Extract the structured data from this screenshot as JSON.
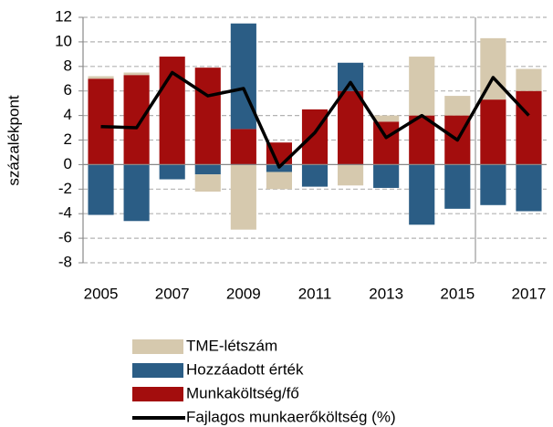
{
  "chart_data": {
    "type": "bar",
    "categories": [
      "2005",
      null,
      "2007",
      null,
      "2009",
      null,
      "2011",
      null,
      "2013",
      null,
      "2015",
      null,
      "2017"
    ],
    "ylabel": "százalékpont",
    "ylim": [
      -8,
      12
    ],
    "yticks": [
      -8,
      -6,
      -4,
      -2,
      0,
      2,
      4,
      6,
      8,
      10,
      12
    ],
    "grid": true,
    "stacked": true,
    "series": [
      {
        "name": "Munkaköltség/fő",
        "type": "bar",
        "color": "#a30d0d",
        "values": [
          7.0,
          7.3,
          8.8,
          7.9,
          2.9,
          1.8,
          4.5,
          6.0,
          3.5,
          4.0,
          4.0,
          5.3,
          6.0
        ]
      },
      {
        "name": "Hozzáadott érték",
        "type": "bar",
        "color": "#2b5d85",
        "values": [
          -4.1,
          -4.6,
          -1.2,
          -0.8,
          8.6,
          -0.6,
          -1.8,
          2.3,
          -1.9,
          -4.9,
          -3.6,
          -3.3,
          -3.8
        ]
      },
      {
        "name": "TME-létszám",
        "type": "bar",
        "color": "#d6c9ae",
        "values": [
          0.2,
          0.2,
          0,
          -1.4,
          -5.3,
          -1.4,
          0,
          -1.7,
          0.5,
          4.8,
          1.6,
          5.0,
          1.8
        ]
      },
      {
        "name": "Fajlagos munkaerőköltség (%)",
        "type": "line",
        "color": "#000000",
        "values": [
          3.1,
          3.0,
          7.5,
          5.6,
          6.2,
          -0.2,
          2.6,
          6.7,
          2.2,
          4.0,
          2.0,
          7.1,
          4.0
        ]
      }
    ]
  }
}
